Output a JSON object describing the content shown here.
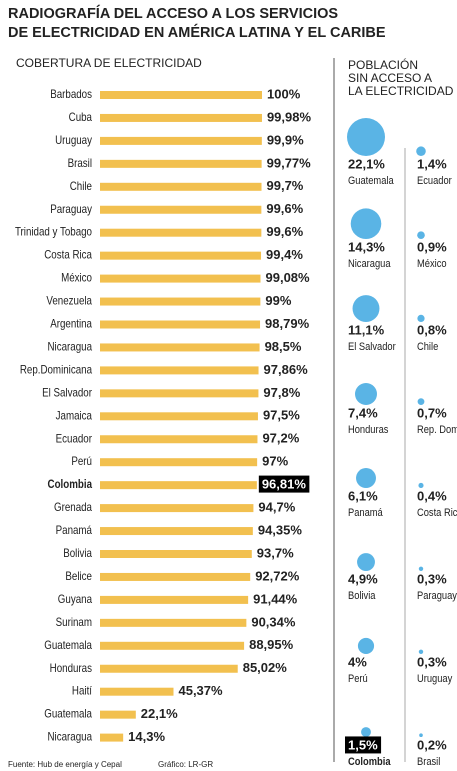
{
  "title": [
    "RADIOGRAFÍA DEL ACCESO A LOS SERVICIOS",
    "DE ELECTRICIDAD EN AMÉRICA LATINA Y EL CARIBE"
  ],
  "source": "Fuente: Hub de energía y Cepal",
  "credit": "Gráfico: LR-GR",
  "chart_data": [
    {
      "type": "bar",
      "orientation": "horizontal",
      "subtitle": "COBERTURA DE ELECTRICIDAD",
      "categories": [
        "Barbados",
        "Cuba",
        "Uruguay",
        "Brasil",
        "Chile",
        "Paraguay",
        "Trinidad y Tobago",
        "Costa Rica",
        "México",
        "Venezuela",
        "Argentina",
        "Nicaragua",
        "Rep.Dominicana",
        "El Salvador",
        "Jamaica",
        "Ecuador",
        "Perú",
        "Colombia",
        "Grenada",
        "Panamá",
        "Bolivia",
        "Belice",
        "Guyana",
        "Surinam",
        "Guatemala",
        "Honduras",
        "Haití",
        "Guatemala",
        "Nicaragua"
      ],
      "values": [
        100,
        99.98,
        99.9,
        99.77,
        99.7,
        99.6,
        99.6,
        99.4,
        99.08,
        99,
        98.79,
        98.5,
        97.86,
        97.8,
        97.5,
        97.2,
        97,
        96.81,
        94.7,
        94.35,
        93.7,
        92.72,
        91.44,
        90.34,
        88.95,
        85.02,
        45.37,
        22.1,
        14.3
      ],
      "value_labels": [
        "100%",
        "99,98%",
        "99,9%",
        "99,77%",
        "99,7%",
        "99,6%",
        "99,6%",
        "99,4%",
        "99,08%",
        "99%",
        "98,79%",
        "98,5%",
        "97,86%",
        "97,8%",
        "97,5%",
        "97,2%",
        "97%",
        "96,81%",
        "94,7%",
        "94,35%",
        "93,7%",
        "92,72%",
        "91,44%",
        "90,34%",
        "88,95%",
        "85,02%",
        "45,37%",
        "22,1%",
        "14,3%"
      ],
      "xlim": [
        0,
        100
      ],
      "color": "#f2c04f",
      "highlight": "Colombia"
    },
    {
      "type": "bubble",
      "title": [
        "POBLACIÓN",
        "SIN ACCESO A",
        "LA ELECTRICIDAD"
      ],
      "categories": [
        "Guatemala",
        "Nicaragua",
        "El Salvador",
        "Honduras",
        "Panamá",
        "Bolivia",
        "Perú",
        "Colombia",
        "Ecuador",
        "México",
        "Chile",
        "Rep. Dominicana",
        "Costa Rica",
        "Paraguay",
        "Uruguay",
        "Brasil"
      ],
      "values": [
        22.1,
        14.3,
        11.1,
        7.4,
        6.1,
        4.9,
        4,
        1.5,
        1.4,
        0.9,
        0.8,
        0.7,
        0.4,
        0.3,
        0.3,
        0.2
      ],
      "value_labels": [
        "22,1%",
        "14,3%",
        "11,1%",
        "7,4%",
        "6,1%",
        "4,9%",
        "4%",
        "1,5%",
        "1,4%",
        "0,9%",
        "0,8%",
        "0,7%",
        "0,4%",
        "0,3%",
        "0,3%",
        "0,2%"
      ],
      "color": "#5ab4e5",
      "highlight": "Colombia"
    }
  ]
}
